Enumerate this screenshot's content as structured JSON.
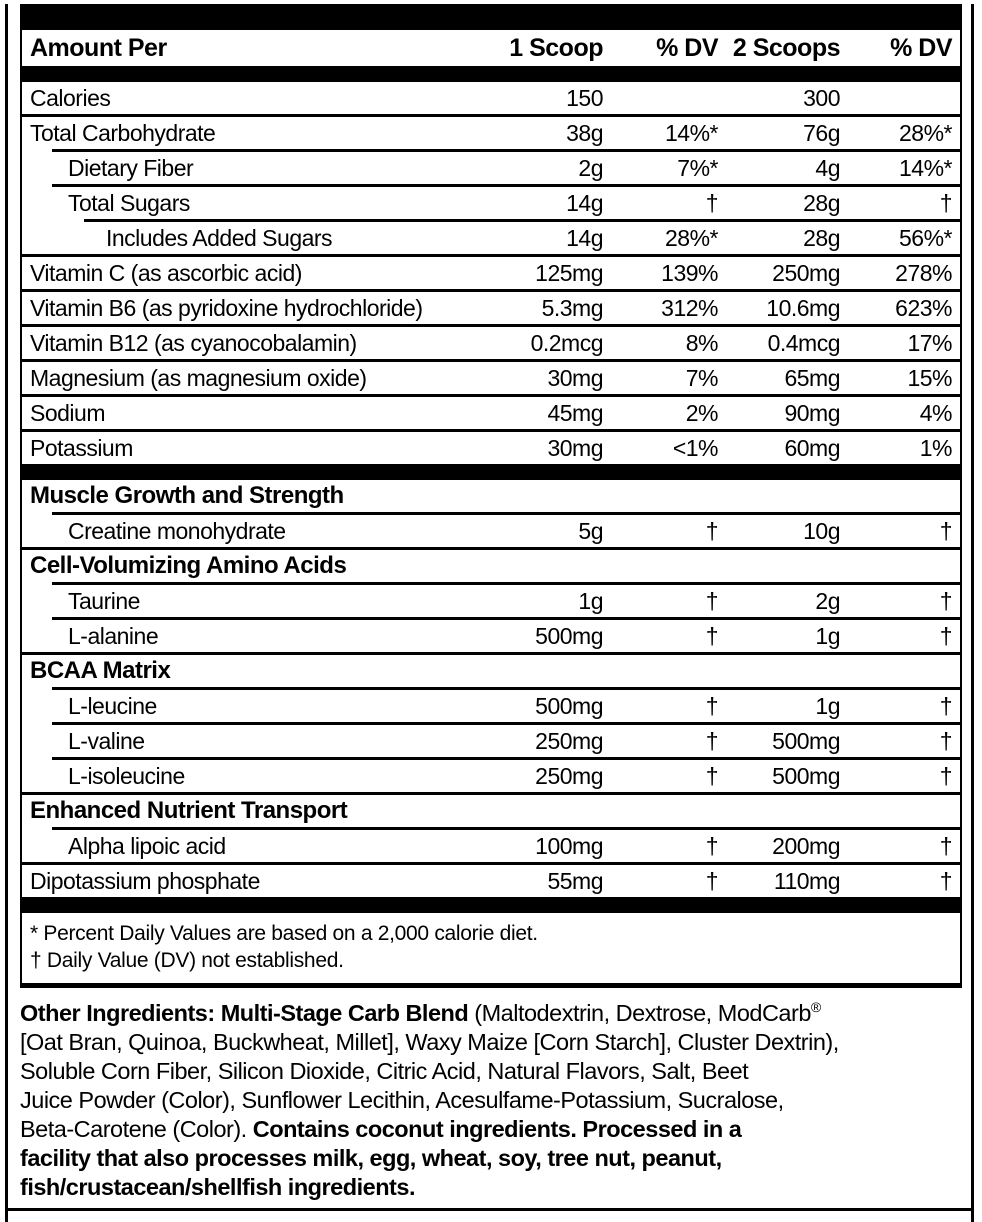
{
  "colors": {
    "ink": "#000000",
    "paper": "#ffffff"
  },
  "facts": {
    "header": {
      "amount_per": "Amount Per",
      "col_scoop1": "1 Scoop",
      "col_dv1": "% DV",
      "col_scoop2": "2 Scoops",
      "col_dv2": "% DV"
    },
    "rows": [
      {
        "type": "item",
        "label": "Calories",
        "indent": 0,
        "sep": -1,
        "v1": "150",
        "dv1": "",
        "v2": "300",
        "dv2": ""
      },
      {
        "type": "item",
        "label": "Total Carbohydrate",
        "indent": 0,
        "sep": 0,
        "v1": "38g",
        "dv1": "14%*",
        "v2": "76g",
        "dv2": "28%*"
      },
      {
        "type": "item",
        "label": "Dietary Fiber",
        "indent": 1,
        "sep": 1,
        "v1": "2g",
        "dv1": "7%*",
        "v2": "4g",
        "dv2": "14%*"
      },
      {
        "type": "item",
        "label": "Total Sugars",
        "indent": 1,
        "sep": 1,
        "v1": "14g",
        "dv1": "†",
        "v2": "28g",
        "dv2": "†"
      },
      {
        "type": "item",
        "label": "Includes Added Sugars",
        "indent": 2,
        "sep": 2,
        "v1": "14g",
        "dv1": "28%*",
        "v2": "28g",
        "dv2": "56%*"
      },
      {
        "type": "item",
        "label": "Vitamin C (as ascorbic acid)",
        "indent": 0,
        "sep": 0,
        "v1": "125mg",
        "dv1": "139%",
        "v2": "250mg",
        "dv2": "278%"
      },
      {
        "type": "item",
        "label": "Vitamin B6 (as pyridoxine hydrochloride)",
        "indent": 0,
        "sep": 0,
        "v1": "5.3mg",
        "dv1": "312%",
        "v2": "10.6mg",
        "dv2": "623%"
      },
      {
        "type": "item",
        "label": "Vitamin B12 (as cyanocobalamin)",
        "indent": 0,
        "sep": 0,
        "v1": "0.2mcg",
        "dv1": "8%",
        "v2": "0.4mcg",
        "dv2": "17%"
      },
      {
        "type": "item",
        "label": "Magnesium (as magnesium oxide)",
        "indent": 0,
        "sep": 0,
        "v1": "30mg",
        "dv1": "7%",
        "v2": "65mg",
        "dv2": "15%"
      },
      {
        "type": "item",
        "label": "Sodium",
        "indent": 0,
        "sep": 0,
        "v1": "45mg",
        "dv1": "2%",
        "v2": "90mg",
        "dv2": "4%"
      },
      {
        "type": "item",
        "label": "Potassium",
        "indent": 0,
        "sep": 0,
        "v1": "30mg",
        "dv1": "<1%",
        "v2": "60mg",
        "dv2": "1%"
      },
      {
        "type": "bar"
      },
      {
        "type": "section",
        "label": "Muscle Growth and Strength",
        "sep": -1
      },
      {
        "type": "item",
        "label": "Creatine monohydrate",
        "indent": 1,
        "sep": 1,
        "v1": "5g",
        "dv1": "†",
        "v2": "10g",
        "dv2": "†"
      },
      {
        "type": "section",
        "label": "Cell-Volumizing Amino Acids",
        "sep": 0
      },
      {
        "type": "item",
        "label": "Taurine",
        "indent": 1,
        "sep": 1,
        "v1": "1g",
        "dv1": "†",
        "v2": "2g",
        "dv2": "†"
      },
      {
        "type": "item",
        "label": "L-alanine",
        "indent": 1,
        "sep": 1,
        "v1": "500mg",
        "dv1": "†",
        "v2": "1g",
        "dv2": "†"
      },
      {
        "type": "section",
        "label": "BCAA Matrix",
        "sep": 0
      },
      {
        "type": "item",
        "label": "L-leucine",
        "indent": 1,
        "sep": 1,
        "v1": "500mg",
        "dv1": "†",
        "v2": "1g",
        "dv2": "†"
      },
      {
        "type": "item",
        "label": "L-valine",
        "indent": 1,
        "sep": 1,
        "v1": "250mg",
        "dv1": "†",
        "v2": "500mg",
        "dv2": "†"
      },
      {
        "type": "item",
        "label": "L-isoleucine",
        "indent": 1,
        "sep": 1,
        "v1": "250mg",
        "dv1": "†",
        "v2": "500mg",
        "dv2": "†"
      },
      {
        "type": "section",
        "label": "Enhanced Nutrient Transport",
        "sep": 0
      },
      {
        "type": "item",
        "label": "Alpha lipoic acid",
        "indent": 1,
        "sep": 1,
        "v1": "100mg",
        "dv1": "†",
        "v2": "200mg",
        "dv2": "†"
      },
      {
        "type": "item",
        "label": "Dipotassium phosphate",
        "indent": 0,
        "sep": 0,
        "v1": "55mg",
        "dv1": "†",
        "v2": "110mg",
        "dv2": "†"
      },
      {
        "type": "bar"
      }
    ],
    "footnotes": [
      "* Percent Daily Values are based on a 2,000 calorie diet.",
      "† Daily Value (DV) not established."
    ]
  },
  "other_ingredients": {
    "lines": [
      [
        {
          "t": "Other Ingredients: Multi-Stage Carb Blend",
          "b": true
        },
        {
          "t": " (Maltodextrin, Dextrose, ModCarb",
          "b": false
        },
        {
          "t": "®",
          "b": false,
          "sup": true
        }
      ],
      [
        {
          "t": "[Oat Bran, Quinoa, Buckwheat, Millet], Waxy Maize [Corn Starch], Cluster Dextrin),",
          "b": false
        }
      ],
      [
        {
          "t": "Soluble Corn Fiber, Silicon Dioxide, Citric Acid, Natural Flavors, Salt, Beet",
          "b": false
        }
      ],
      [
        {
          "t": "Juice Powder (Color), Sunflower Lecithin, Acesulfame-Potassium, Sucralose,",
          "b": false
        }
      ],
      [
        {
          "t": "Beta-Carotene (Color). ",
          "b": false
        },
        {
          "t": "Contains coconut ingredients. Processed in a",
          "b": true
        }
      ],
      [
        {
          "t": "facility that also processes milk, egg, wheat, soy, tree nut, peanut,",
          "b": true
        }
      ],
      [
        {
          "t": "fish/crustacean/shellfish ingredients.",
          "b": true
        }
      ]
    ]
  }
}
